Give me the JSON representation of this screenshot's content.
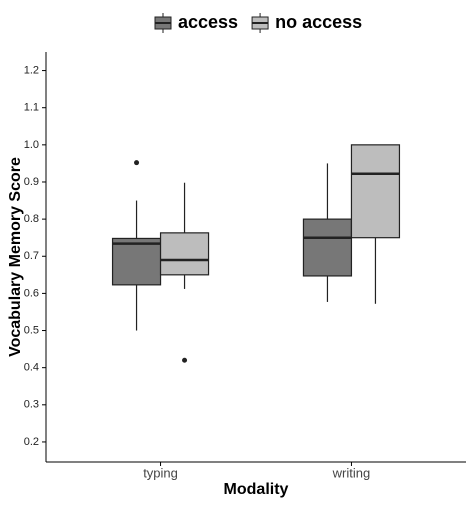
{
  "chart_data": {
    "type": "box",
    "x_label": "Modality",
    "y_label": "Vocabulary Memory Score",
    "categories": [
      "typing",
      "writing"
    ],
    "series": [
      {
        "name": "access",
        "color": "#777777",
        "low": [
          0.5,
          0.577
        ],
        "q1": [
          0.623,
          0.647
        ],
        "median": [
          0.734,
          0.75
        ],
        "q3": [
          0.748,
          0.8
        ],
        "high": [
          0.85,
          0.95
        ],
        "outliers": [
          [
            0.952
          ],
          []
        ]
      },
      {
        "name": "no access",
        "color": "#bdbdbd",
        "low": [
          0.612,
          0.572
        ],
        "q1": [
          0.65,
          0.75
        ],
        "median": [
          0.69,
          0.922
        ],
        "q3": [
          0.763,
          1.0
        ],
        "high": [
          0.898,
          1.0
        ],
        "outliers": [
          [
            0.42
          ],
          []
        ]
      }
    ],
    "ylim": [
      0.146,
      1.25
    ],
    "yticks": [
      0.2,
      0.3,
      0.4,
      0.5,
      0.6,
      0.7,
      0.8,
      0.9,
      {
        "value": 1,
        "label": "1.0"
      },
      1.1,
      1.2
    ],
    "legend_position": "top"
  }
}
